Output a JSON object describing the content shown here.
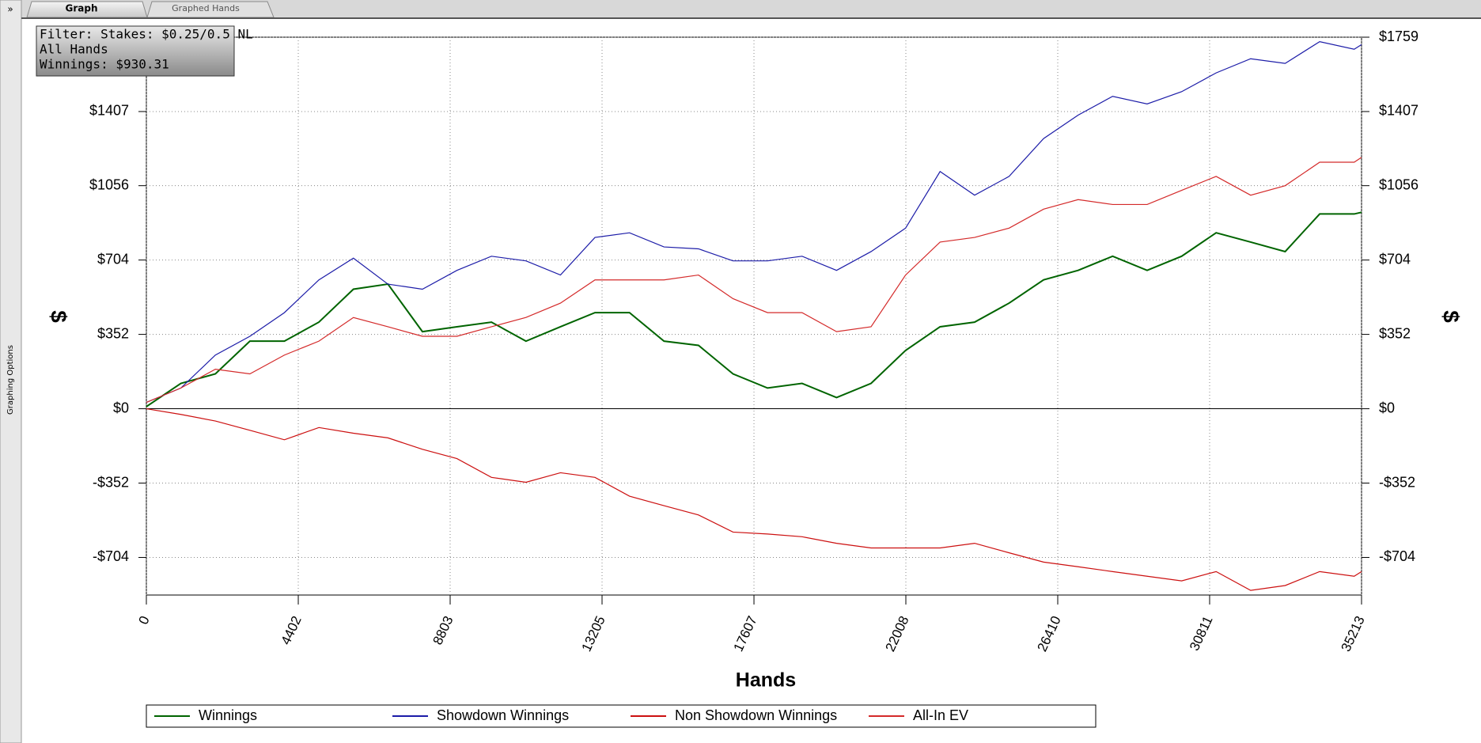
{
  "ui": {
    "sidebar_toggle": "»",
    "sidebar_label": "Graphing Options",
    "tabs": [
      "Graph",
      "Graphed Hands"
    ]
  },
  "chart_data": {
    "type": "line",
    "filter_lines": [
      "Filter: Stakes: $0.25/0.5 NL",
      "All Hands",
      "Winnings: $930.31"
    ],
    "xlabel": "Hands",
    "ylabel": "$",
    "y2label": "$",
    "x": [
      0,
      1000,
      2000,
      3000,
      4000,
      5000,
      6000,
      7000,
      8000,
      9000,
      10000,
      11000,
      12000,
      13000,
      14000,
      15000,
      16000,
      17000,
      18000,
      19000,
      20000,
      21000,
      22000,
      23000,
      24000,
      25000,
      26000,
      27000,
      28000,
      29000,
      30000,
      31000,
      32000,
      33000,
      34000,
      35000,
      35213
    ],
    "xlim": [
      0,
      35213
    ],
    "xticks": [
      0,
      4402,
      8803,
      13205,
      17607,
      22008,
      26410,
      30811,
      35213
    ],
    "ylim": [
      -882,
      1759
    ],
    "yticks": [
      {
        "value": -704,
        "label": "-$704"
      },
      {
        "value": -352,
        "label": "-$352"
      },
      {
        "value": 0,
        "label": "$0"
      },
      {
        "value": 352,
        "label": "$352"
      },
      {
        "value": 704,
        "label": "$704"
      },
      {
        "value": 1056,
        "label": "$1056"
      },
      {
        "value": 1407,
        "label": "$1407"
      },
      {
        "value": 1759,
        "label": "$1759"
      }
    ],
    "grid": true,
    "series": [
      {
        "name": "Winnings",
        "color": "#006400",
        "values": [
          10,
          120,
          165,
          320,
          320,
          410,
          566,
          590,
          365,
          388,
          410,
          320,
          388,
          455,
          455,
          320,
          300,
          165,
          98,
          120,
          53,
          120,
          276,
          388,
          410,
          500,
          610,
          655,
          722,
          655,
          722,
          833,
          789,
          744,
          922,
          922,
          930
        ]
      },
      {
        "name": "Showdown Winnings",
        "color": "#1c1ca8",
        "values": [
          30,
          98,
          254,
          343,
          455,
          610,
          713,
          590,
          566,
          655,
          722,
          700,
          633,
          811,
          833,
          766,
          757,
          700,
          700,
          722,
          655,
          744,
          855,
          1123,
          1011,
          1100,
          1279,
          1390,
          1479,
          1443,
          1501,
          1590,
          1657,
          1635,
          1738,
          1702,
          1724
        ]
      },
      {
        "name": "Non Showdown Winnings",
        "color": "#cc1010",
        "values": [
          0,
          -27,
          -58,
          -102,
          -147,
          -89,
          -116,
          -138,
          -192,
          -236,
          -325,
          -348,
          -303,
          -325,
          -414,
          -459,
          -503,
          -584,
          -593,
          -606,
          -637,
          -659,
          -659,
          -659,
          -637,
          -682,
          -726,
          -748,
          -771,
          -793,
          -815,
          -771,
          -860,
          -837,
          -771,
          -793,
          -771
        ]
      },
      {
        "name": "All-In EV",
        "color": "#d42a2a",
        "values": [
          30,
          98,
          187,
          165,
          254,
          320,
          432,
          388,
          343,
          343,
          388,
          432,
          500,
          610,
          610,
          610,
          633,
          521,
          455,
          455,
          365,
          388,
          633,
          789,
          811,
          855,
          945,
          990,
          967,
          967,
          1034,
          1100,
          1011,
          1056,
          1167,
          1167,
          1190
        ]
      }
    ]
  }
}
